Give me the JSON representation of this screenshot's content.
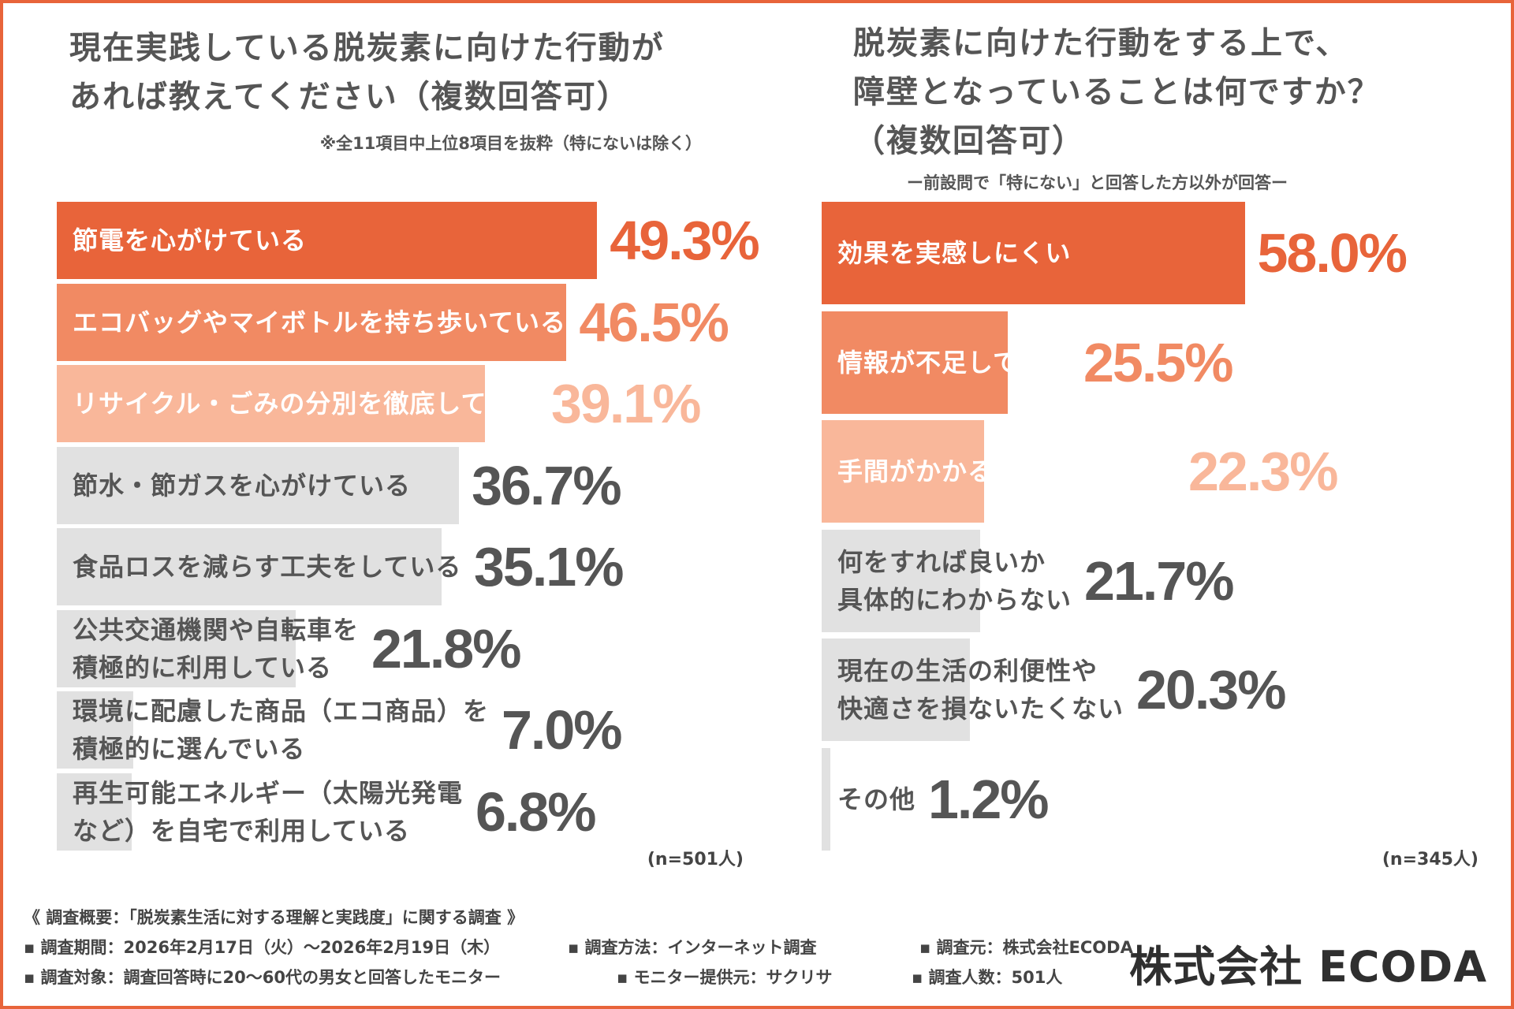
{
  "colors": {
    "accent1": "#e8643a",
    "accent2": "#f18a63",
    "accent3": "#f9b79a",
    "bar_gray": "#e1e1e1",
    "text_gray": "#555555"
  },
  "left_chart": {
    "title": "現在実践している脱炭素に向けた行動が\nあれば教えてください（複数回答可）",
    "note": "※全11項目中上位8項目を抜粋（特にないは除く）",
    "n": "(n=501人)"
  },
  "right_chart": {
    "title": "脱炭素に向けた行動をする上で、\n障壁となっていることは何ですか？\n（複数回答可）",
    "note": "ー前設問で「特にない」と回答した方以外が回答ー",
    "n": "(n=345人)"
  },
  "chart_data": [
    {
      "type": "bar",
      "orientation": "horizontal",
      "title": "現在実践している脱炭素に向けた行動が\nあれば教えてください（複数回答可）",
      "categories": [
        "節電を心がけている",
        "エコバッグやマイボトルを持ち歩いている",
        "リサイクル・ごみの分別を徹底している",
        "節水・節ガスを心がけている",
        "食品ロスを減らす工夫をしている",
        "公共交通機関や自転車を\n積極的に利用している",
        "環境に配慮した商品（エコ商品）を\n積極的に選んでいる",
        "再生可能エネルギー（太陽光発電\nなど）を自宅で利用している"
      ],
      "values": [
        49.3,
        46.5,
        39.1,
        36.7,
        35.1,
        21.8,
        7.0,
        6.8
      ],
      "value_labels": [
        "49.3%",
        "46.5%",
        "39.1%",
        "36.7%",
        "35.1%",
        "21.8%",
        "7.0%",
        "6.8%"
      ],
      "unit": "%",
      "n": "(n=501人)"
    },
    {
      "type": "bar",
      "orientation": "horizontal",
      "title": "脱炭素に向けた行動をする上で、\n障壁となっていることは何ですか？\n（複数回答可）",
      "categories": [
        "効果を実感しにくい",
        "情報が不足している",
        "手間がかかる・面倒に感じる",
        "何をすれば良いか\n具体的にわからない",
        "現在の生活の利便性や\n快適さを損ないたくない",
        "その他"
      ],
      "values": [
        58.0,
        25.5,
        22.3,
        21.7,
        20.3,
        1.2
      ],
      "value_labels": [
        "58.0%",
        "25.5%",
        "22.3%",
        "21.7%",
        "20.3%",
        "1.2%"
      ],
      "unit": "%",
      "n": "(n=345人)"
    }
  ],
  "survey": {
    "header": "《 調査概要：「脱炭素生活に対する理解と実践度」に関する調査 》",
    "period": "▪ 調査期間：2026年2月17日（火）～2026年2月19日（木）",
    "method": "▪ 調査方法：インターネット調査",
    "source": "▪ 調査元：株式会社ECODA",
    "target": "▪ 調査対象：調査回答時に20～60代の男女と回答したモニター",
    "provider": "▪ モニター提供元：サクリサ",
    "count": "▪ 調査人数：501人"
  },
  "company": "株式会社 ECODA"
}
